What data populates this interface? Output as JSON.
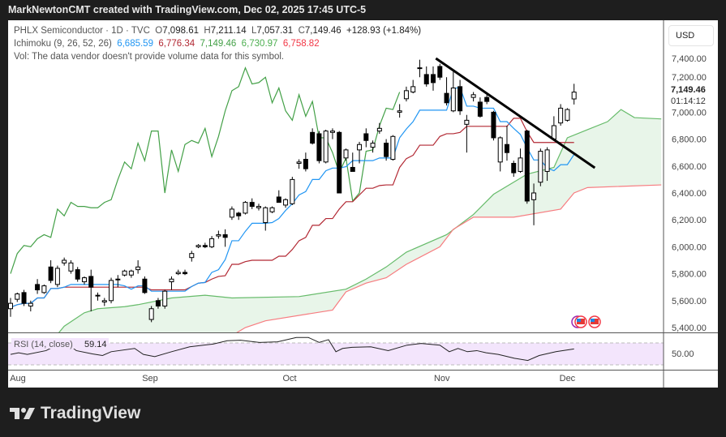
{
  "header": {
    "attribution": "MarkNewtonCMT created with TradingView.com, Dec 02, 2025 17:45 UTC-5"
  },
  "legend": {
    "symbol": "PHLX Semiconductor · 1D · TVC",
    "o_label": "O",
    "o": "7,098.61",
    "h_label": "H",
    "h": "7,211.14",
    "l_label": "L",
    "l": "7,057.31",
    "c_label": "C",
    "c": "7,149.46",
    "change": "+128.93 (+1.84%)",
    "ichimoku_label": "Ichimoku (9, 26, 52, 26)",
    "ichimoku_values": [
      "6,685.59",
      "6,776.34",
      "7,149.46",
      "6,730.97",
      "6,758.82"
    ],
    "vol_message": "Vol: The data vendor doesn't provide volume data for this symbol."
  },
  "price_axis": {
    "currency": "USD",
    "last_price": "7,149.46",
    "countdown": "01:14:12"
  },
  "rsi": {
    "label": "RSI (14, close)",
    "value": "59.14",
    "axis_label": "50.00"
  },
  "logo": {
    "text": "TradingView"
  },
  "colors": {
    "tenkan": "#2196f3",
    "kijun": "#b22833",
    "chikou": "#43a047",
    "span_a": "#66bb6a",
    "span_b": "#f77c80",
    "cloud": "#e8f5e9",
    "rsi_band": "#f3e5fc",
    "up": "#ffffff",
    "down": "#000000"
  },
  "chart_data": {
    "type": "candlestick",
    "title": "PHLX Semiconductor · 1D · TVC",
    "ylim": [
      5400,
      7400
    ],
    "y_ticks": [
      "7,400.00",
      "7,200.00",
      "7,000.00",
      "6,800.00",
      "6,600.00",
      "6,400.00",
      "6,200.00",
      "6,000.00",
      "5,800.00",
      "5,600.00",
      "5,400.00"
    ],
    "x_ticks": [
      {
        "label": "Aug",
        "index": 0
      },
      {
        "label": "Sep",
        "index": 20.8
      },
      {
        "label": "Oct",
        "index": 41.6
      },
      {
        "label": "Nov",
        "index": 64.3
      },
      {
        "label": "Dec",
        "index": 83
      }
    ],
    "ohlc": [
      [
        5540,
        5620,
        5480,
        5580
      ],
      [
        5610,
        5660,
        5590,
        5650
      ],
      [
        5660,
        5680,
        5560,
        5580
      ],
      [
        5560,
        5600,
        5520,
        5580
      ],
      [
        5720,
        5760,
        5650,
        5680
      ],
      [
        5660,
        5720,
        5650,
        5710
      ],
      [
        5850,
        5900,
        5730,
        5750
      ],
      [
        5720,
        5860,
        5700,
        5840
      ],
      [
        5880,
        5920,
        5860,
        5900
      ],
      [
        5820,
        5900,
        5800,
        5880
      ],
      [
        5830,
        5850,
        5740,
        5760
      ],
      [
        5740,
        5780,
        5720,
        5770
      ],
      [
        5780,
        5830,
        5520,
        5700
      ],
      [
        5640,
        5660,
        5600,
        5640
      ],
      [
        5590,
        5620,
        5560,
        5600
      ],
      [
        5600,
        5770,
        5580,
        5750
      ],
      [
        5760,
        5790,
        5700,
        5760
      ],
      [
        5790,
        5830,
        5780,
        5820
      ],
      [
        5790,
        5830,
        5770,
        5820
      ],
      [
        5830,
        5900,
        5800,
        5850
      ],
      [
        5760,
        5780,
        5650,
        5660
      ],
      [
        5460,
        5560,
        5440,
        5540
      ],
      [
        5600,
        5620,
        5540,
        5560
      ],
      [
        5560,
        5680,
        5540,
        5670
      ],
      [
        5740,
        5780,
        5680,
        5760
      ],
      [
        5800,
        5830,
        5790,
        5810
      ],
      [
        5810,
        5830,
        5790,
        5800
      ],
      [
        5920,
        5970,
        5890,
        5950
      ],
      [
        6000,
        6020,
        5990,
        6010
      ],
      [
        6010,
        6030,
        5990,
        6000
      ],
      [
        6000,
        6080,
        5990,
        6060
      ],
      [
        6080,
        6120,
        6060,
        6090
      ],
      [
        6090,
        6130,
        6000,
        6070
      ],
      [
        6220,
        6300,
        6200,
        6280
      ],
      [
        6250,
        6260,
        6200,
        6230
      ],
      [
        6250,
        6340,
        6240,
        6330
      ],
      [
        6330,
        6360,
        6280,
        6300
      ],
      [
        6290,
        6320,
        6270,
        6300
      ],
      [
        6180,
        6300,
        6120,
        6290
      ],
      [
        6260,
        6300,
        6250,
        6290
      ],
      [
        6370,
        6420,
        6330,
        6330
      ],
      [
        6310,
        6360,
        6290,
        6350
      ],
      [
        6320,
        6520,
        6310,
        6500
      ],
      [
        6620,
        6650,
        6580,
        6630
      ],
      [
        6650,
        6700,
        6560,
        6580
      ],
      [
        6850,
        6880,
        6760,
        6770
      ],
      [
        6840,
        6860,
        6620,
        6640
      ],
      [
        6630,
        6870,
        6620,
        6860
      ],
      [
        6850,
        6880,
        6800,
        6860
      ],
      [
        6850,
        6860,
        6400,
        6400
      ],
      [
        6660,
        6730,
        6640,
        6720
      ],
      [
        6590,
        6700,
        6560,
        6560
      ],
      [
        6720,
        6780,
        6620,
        6760
      ],
      [
        6840,
        6880,
        6740,
        6790
      ],
      [
        6740,
        6790,
        6700,
        6770
      ],
      [
        6860,
        6920,
        6840,
        6880
      ],
      [
        6770,
        6800,
        6640,
        6670
      ],
      [
        6650,
        6830,
        6640,
        6820
      ],
      [
        7000,
        7060,
        6960,
        7010
      ],
      [
        7100,
        7190,
        7080,
        7160
      ],
      [
        7150,
        7240,
        7140,
        7190
      ],
      [
        7330,
        7390,
        7260,
        7330
      ],
      [
        7280,
        7340,
        7190,
        7210
      ],
      [
        7280,
        7340,
        7160,
        7220
      ],
      [
        7340,
        7360,
        7240,
        7260
      ],
      [
        7140,
        7260,
        7050,
        7070
      ],
      [
        7010,
        7300,
        7000,
        7180
      ],
      [
        7190,
        7240,
        6980,
        7010
      ],
      [
        6910,
        6980,
        6700,
        6940
      ],
      [
        7110,
        7150,
        7080,
        7130
      ],
      [
        7075,
        7110,
        6960,
        6970
      ],
      [
        7110,
        7130,
        7060,
        7080
      ],
      [
        7000,
        7010,
        6790,
        6810
      ],
      [
        6630,
        6820,
        6560,
        6810
      ],
      [
        6760,
        6900,
        6640,
        6700
      ],
      [
        6620,
        6640,
        6520,
        6550
      ],
      [
        6560,
        6730,
        6550,
        6660
      ],
      [
        6860,
        6870,
        6320,
        6340
      ],
      [
        6350,
        6470,
        6160,
        6400
      ],
      [
        6480,
        6730,
        6450,
        6710
      ],
      [
        6560,
        6740,
        6490,
        6720
      ],
      [
        6800,
        6970,
        6790,
        6900
      ],
      [
        6920,
        7060,
        6900,
        7030
      ],
      [
        6940,
        7030,
        6930,
        7020
      ],
      [
        7098.61,
        7211.14,
        7057.31,
        7149.46
      ]
    ],
    "ichimoku": {
      "params": [
        9,
        26,
        52,
        26
      ],
      "span_a": [
        [
          0,
          5200
        ],
        [
          7,
          5350
        ],
        [
          8,
          5410
        ],
        [
          11,
          5510
        ],
        [
          13,
          5540
        ],
        [
          17,
          5555
        ],
        [
          19,
          5570
        ],
        [
          24,
          5620
        ],
        [
          29,
          5640
        ],
        [
          33,
          5620
        ],
        [
          43,
          5630
        ],
        [
          50,
          5685
        ],
        [
          53,
          5760
        ],
        [
          56,
          5850
        ],
        [
          59,
          5960
        ],
        [
          65,
          6090
        ],
        [
          69,
          6240
        ],
        [
          72,
          6390
        ],
        [
          77,
          6540
        ],
        [
          81,
          6590
        ],
        [
          83,
          6810
        ],
        [
          86,
          6870
        ],
        [
          89,
          6930
        ],
        [
          91,
          7020
        ],
        [
          93,
          6960
        ],
        [
          97,
          6950
        ]
      ],
      "span_b": [
        [
          0,
          5150
        ],
        [
          30,
          5250
        ],
        [
          35,
          5400
        ],
        [
          38,
          5450
        ],
        [
          48,
          5530
        ],
        [
          50,
          5665
        ],
        [
          53,
          5730
        ],
        [
          56,
          5770
        ],
        [
          59,
          5870
        ],
        [
          64,
          6000
        ],
        [
          66,
          6130
        ],
        [
          69,
          6220
        ],
        [
          75,
          6220
        ],
        [
          82,
          6280
        ],
        [
          84,
          6400
        ],
        [
          86,
          6440
        ],
        [
          97,
          6460
        ]
      ]
    },
    "trendline": [
      [
        63.4,
        7400
      ],
      [
        87.1,
        6587
      ]
    ],
    "rsi_series": [
      [
        0,
        49
      ],
      [
        1.2,
        52
      ],
      [
        2.5,
        49
      ],
      [
        5.3,
        56
      ],
      [
        6.7,
        65
      ],
      [
        8.8,
        66
      ],
      [
        9.8,
        56
      ],
      [
        12.2,
        50
      ],
      [
        13.7,
        47
      ],
      [
        15,
        54
      ],
      [
        18.5,
        60
      ],
      [
        19.8,
        49
      ],
      [
        21.5,
        45
      ],
      [
        24,
        54
      ],
      [
        26.7,
        63
      ],
      [
        30.2,
        68
      ],
      [
        32.3,
        74
      ],
      [
        34.3,
        75
      ],
      [
        37.1,
        71
      ],
      [
        39.8,
        72
      ],
      [
        42.6,
        80
      ],
      [
        44.4,
        80
      ],
      [
        46,
        71
      ],
      [
        47.4,
        76
      ],
      [
        48.5,
        54
      ],
      [
        49.5,
        60
      ],
      [
        50.9,
        62
      ],
      [
        53.7,
        63
      ],
      [
        56.3,
        56
      ],
      [
        59.1,
        66
      ],
      [
        61.2,
        69
      ],
      [
        64,
        66
      ],
      [
        65.4,
        54
      ],
      [
        66.7,
        60
      ],
      [
        68.1,
        54
      ],
      [
        69.5,
        56
      ],
      [
        70.9,
        52
      ],
      [
        72.7,
        49
      ],
      [
        75.1,
        42
      ],
      [
        77.1,
        38
      ],
      [
        78.8,
        47
      ],
      [
        81.3,
        54
      ],
      [
        84,
        59.14
      ]
    ],
    "rsi_bands": [
      30,
      50,
      70
    ]
  }
}
